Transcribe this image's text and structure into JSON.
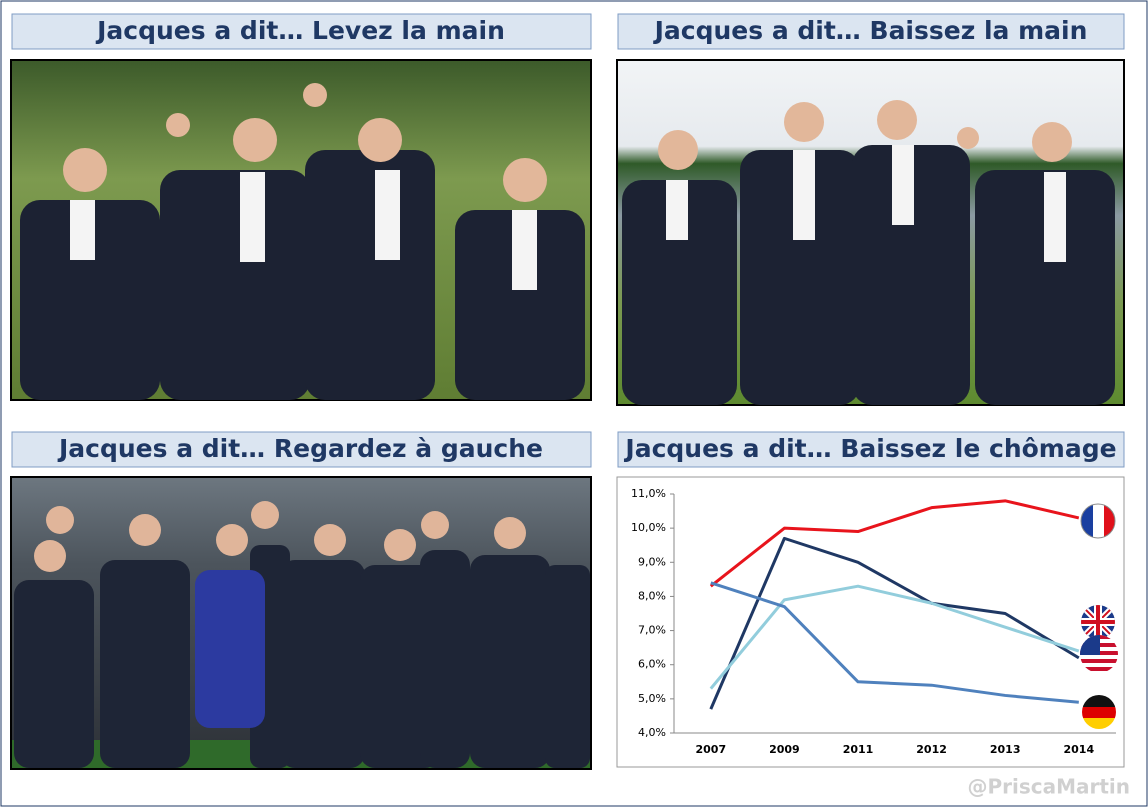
{
  "panels": [
    {
      "title": "Jacques a dit… Levez la main"
    },
    {
      "title": "Jacques a dit… Baissez la main"
    },
    {
      "title": "Jacques a dit… Regardez à gauche"
    },
    {
      "title": "Jacques a dit… Baissez le chômage"
    }
  ],
  "chart_data": {
    "type": "line",
    "categories": [
      "2007",
      "2009",
      "2011",
      "2012",
      "2013",
      "2014"
    ],
    "series": [
      {
        "color": "#e8141c",
        "values": [
          8.3,
          10.0,
          9.9,
          10.6,
          10.8,
          10.3
        ]
      },
      {
        "color": "#1f3864",
        "values": [
          4.7,
          9.7,
          9.0,
          7.8,
          7.5,
          6.2
        ]
      },
      {
        "color": "#92cddc",
        "values": [
          5.3,
          7.9,
          8.3,
          7.8,
          7.1,
          6.4
        ]
      },
      {
        "color": "#4f81bd",
        "values": [
          8.4,
          7.7,
          5.5,
          5.4,
          5.1,
          4.9
        ]
      }
    ],
    "ylim": [
      4,
      11
    ],
    "yticks": [
      {
        "value": 4,
        "label": "4,0%"
      },
      {
        "value": 5,
        "label": "5,0%"
      },
      {
        "value": 6,
        "label": "6,0%"
      },
      {
        "value": 7,
        "label": "7,0%"
      },
      {
        "value": 8,
        "label": "8,0%"
      },
      {
        "value": 9,
        "label": "9,0%"
      },
      {
        "value": 10,
        "label": "10,0%"
      },
      {
        "value": 11,
        "label": "11,0%"
      }
    ],
    "grid": false
  },
  "credit": "@PriscaMartin"
}
